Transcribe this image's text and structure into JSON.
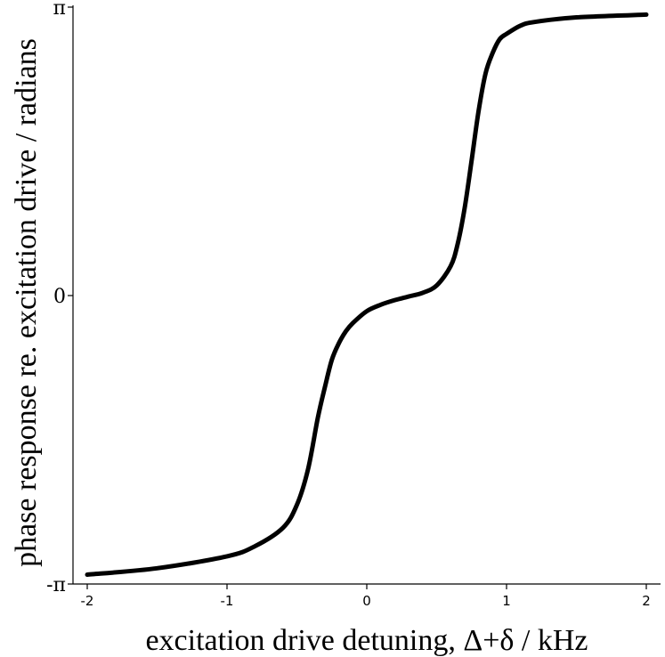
{
  "chart_data": {
    "type": "line",
    "title": "",
    "xlabel": "excitation drive detuning, Δ+δ / kHz",
    "ylabel": "phase response re. excitation drive / radians",
    "xlim": [
      -2,
      2
    ],
    "ylim": [
      -3.1416,
      3.1416
    ],
    "x_ticks": [
      -2,
      -1,
      0,
      1,
      2
    ],
    "x_tick_labels": [
      "-2",
      "-1",
      "0",
      "1",
      "2"
    ],
    "y_ticks": [
      -3.1416,
      0,
      3.1416
    ],
    "y_tick_labels": [
      "-π",
      "0",
      "π"
    ],
    "grid": false,
    "legend": "none",
    "series": [
      {
        "color": "#000000",
        "x": [
          -2.0,
          -1.5,
          -1.0,
          -0.8,
          -0.6,
          -0.5,
          -0.42,
          -0.35,
          -0.3,
          -0.25,
          -0.2,
          -0.15,
          -0.1,
          0.0,
          0.1,
          0.2,
          0.3,
          0.4,
          0.5,
          0.6,
          0.65,
          0.7,
          0.75,
          0.8,
          0.85,
          0.9,
          0.95,
          1.0,
          1.1,
          1.2,
          1.5,
          2.0
        ],
        "y": [
          -3.04,
          -2.97,
          -2.84,
          -2.73,
          -2.53,
          -2.28,
          -1.89,
          -1.33,
          -1.0,
          -0.7,
          -0.52,
          -0.39,
          -0.3,
          -0.17,
          -0.1,
          -0.05,
          -0.01,
          0.03,
          0.11,
          0.32,
          0.56,
          0.95,
          1.47,
          2.01,
          2.42,
          2.64,
          2.79,
          2.85,
          2.94,
          2.98,
          3.03,
          3.06
        ]
      }
    ]
  }
}
